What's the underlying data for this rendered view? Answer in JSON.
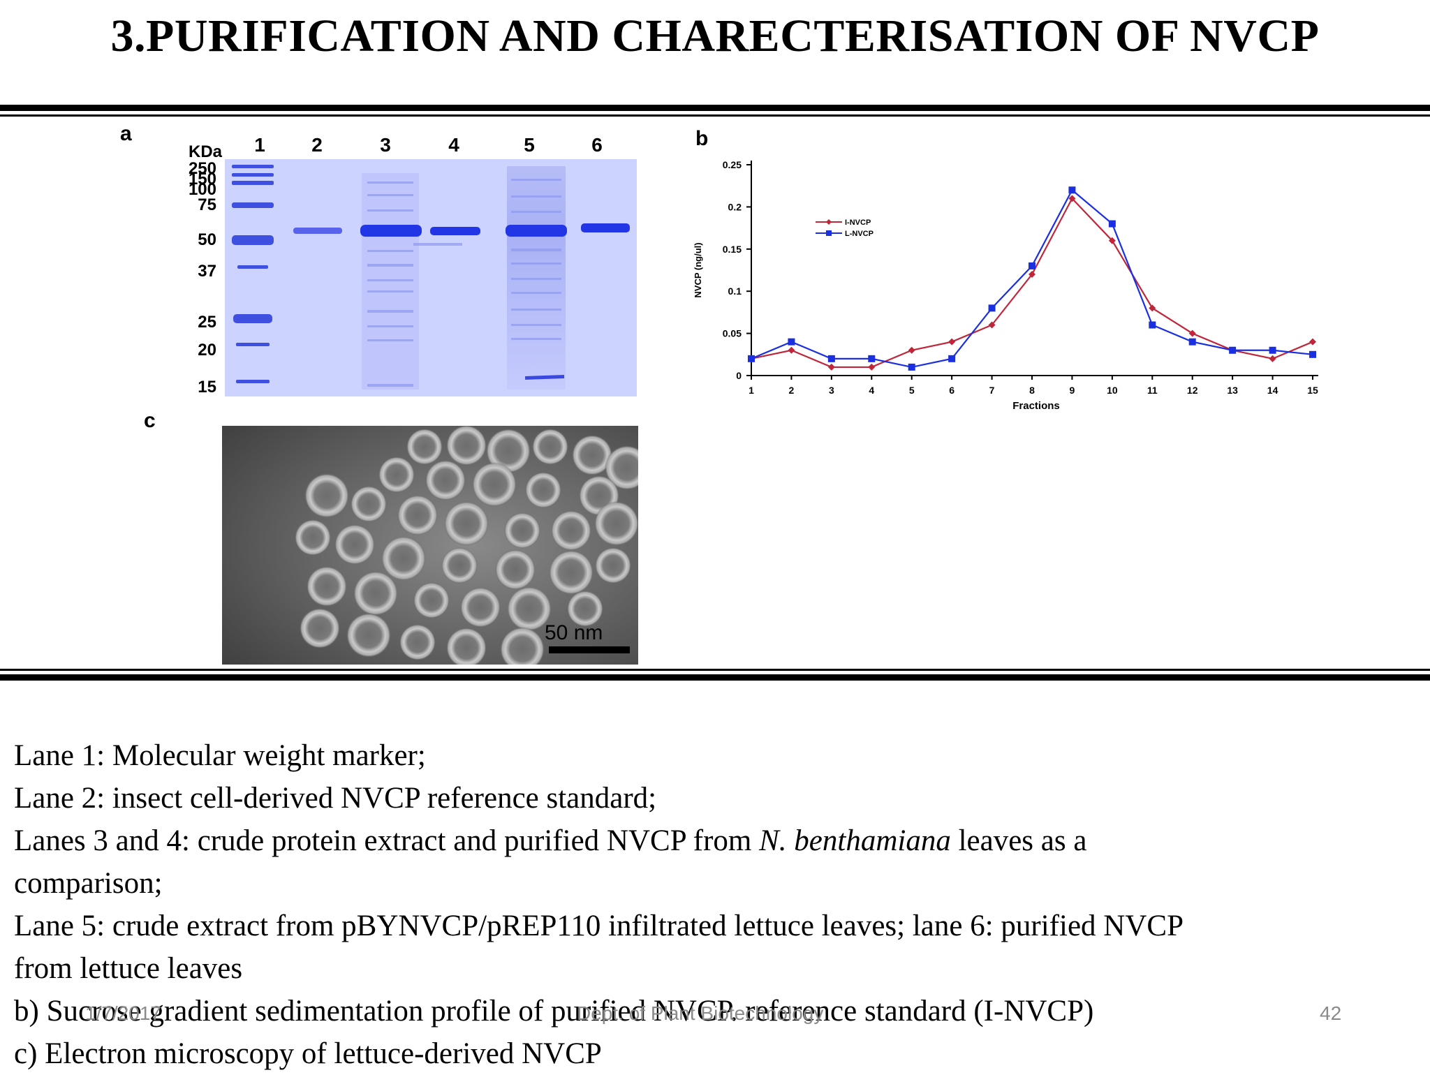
{
  "slide": {
    "title": "3.PURIFICATION  AND CHARECTERISATION OF NVCP",
    "footer_date": "1/7/2017",
    "footer_center": "Dept. of Plant Biotechnology",
    "page_number": "42"
  },
  "figure": {
    "panel_a_label": "a",
    "panel_b_label": "b",
    "panel_c_label": "c",
    "kda_label": "KDa",
    "lane_numbers": [
      "1",
      "2",
      "3",
      "4",
      "5",
      "6"
    ],
    "marker_weights": [
      "250",
      "150",
      "100",
      "75",
      "50",
      "37",
      "25",
      "20",
      "15"
    ],
    "scale_bar_label": "50 nm"
  },
  "chart_data": {
    "type": "line",
    "title": "",
    "xlabel": "Fractions",
    "ylabel": "NVCP (ng/ul)",
    "ylim": [
      0,
      0.25
    ],
    "yticks": [
      "0",
      "0.05",
      "0.1",
      "0.15",
      "0.2",
      "0.25"
    ],
    "categories": [
      "1",
      "2",
      "3",
      "4",
      "5",
      "6",
      "7",
      "8",
      "9",
      "10",
      "11",
      "12",
      "13",
      "14",
      "15"
    ],
    "legend_position": "top-left",
    "grid": false,
    "series": [
      {
        "name": "I-NVCP",
        "color": "#c0263a",
        "marker": "diamond",
        "values": [
          0.02,
          0.03,
          0.01,
          0.01,
          0.03,
          0.04,
          0.06,
          0.12,
          0.21,
          0.16,
          0.08,
          0.05,
          0.03,
          0.02,
          0.04
        ]
      },
      {
        "name": "L-NVCP",
        "color": "#1a2fe0",
        "marker": "square",
        "values": [
          0.02,
          0.04,
          0.02,
          0.02,
          0.01,
          0.02,
          0.08,
          0.13,
          0.22,
          0.18,
          0.06,
          0.04,
          0.03,
          0.03,
          0.025
        ]
      }
    ]
  },
  "caption": {
    "line1": "Lane 1: Molecular weight marker;",
    "line2": "Lane 2: insect cell-derived NVCP reference standard;",
    "line3_a": "Lanes 3 and 4: crude protein extract and purified NVCP from ",
    "line3_italic": "N. benthamiana",
    "line3_b": " leaves as a",
    "line4": "comparison;",
    "line5": "Lane 5: crude extract from pBYNVCP/pREP110 infiltrated lettuce leaves; lane 6: purified NVCP",
    "line6": "from lettuce leaves",
    "line7": "b) Sucrose gradient sedimentation profile of purified NVCP. reference standard (I-NVCP)",
    "line8": "c)   Electron microscopy of lettuce-derived NVCP"
  }
}
